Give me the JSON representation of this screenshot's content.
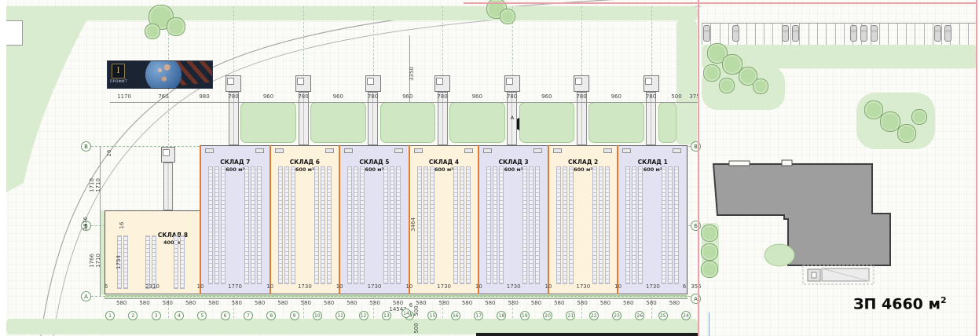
{
  "site": {
    "area_label": "ЗП 4660 м",
    "area_sup": "2"
  },
  "logo": {
    "text": "ПРОФИТ"
  },
  "warehouses": [
    {
      "name": "СКЛАД 7",
      "area": "600 м²"
    },
    {
      "name": "СКЛАД 6",
      "area": "600 м²"
    },
    {
      "name": "СКЛАД 5",
      "area": "600 м²"
    },
    {
      "name": "СКЛАД 4",
      "area": "600 м²"
    },
    {
      "name": "СКЛАД 3",
      "area": "600 м²"
    },
    {
      "name": "СКЛАД 2",
      "area": "600 м²"
    },
    {
      "name": "СКЛАД 1",
      "area": "600 м²"
    },
    {
      "name": "СКЛАД 8",
      "area": "400 м²"
    }
  ],
  "dims": {
    "top": [
      "1170",
      "760",
      "980",
      "780",
      "960",
      "780",
      "960",
      "780",
      "960",
      "780",
      "960",
      "780",
      "960",
      "780",
      "960",
      "780",
      "500",
      "375"
    ],
    "inner": [
      "6",
      "2310",
      "10",
      "1770",
      "10",
      "1730",
      "10",
      "1730",
      "10",
      "1730",
      "10",
      "1730",
      "10",
      "1730",
      "10",
      "1730",
      "6",
      "355"
    ],
    "bottom_module": "580",
    "bottom_count": 25,
    "bottom_total": "14542",
    "left_vertical": [
      "26",
      "1710",
      "1710",
      "3476",
      "1766",
      "1710",
      "1754",
      "16"
    ],
    "center_vertical": [
      "3350",
      "3464",
      "500",
      "500",
      "6"
    ]
  },
  "grid": {
    "columns": [
      "1",
      "2",
      "3",
      "4",
      "5",
      "6",
      "7",
      "8",
      "9",
      "10",
      "11",
      "12",
      "13",
      "14",
      "15",
      "16",
      "17",
      "18",
      "19",
      "20",
      "21",
      "22",
      "23",
      "26",
      "25",
      "24"
    ],
    "rows_left": [
      "В",
      "Б",
      "А"
    ],
    "rows_right": [
      "В",
      "Б"
    ],
    "row_bottom_right": "А",
    "mid_bubble": "14",
    "section_mark": "А"
  },
  "colors": {
    "unit_fill_a": "#e2e2f2",
    "unit_fill_b": "#fdf3dc",
    "divider_orange": "#e07b30",
    "green_area": "#d9ecd0",
    "hedge_green": "#cfe7c2",
    "building_gray": "#9e9e9e",
    "boundary_pink": "#e8a2aa"
  }
}
